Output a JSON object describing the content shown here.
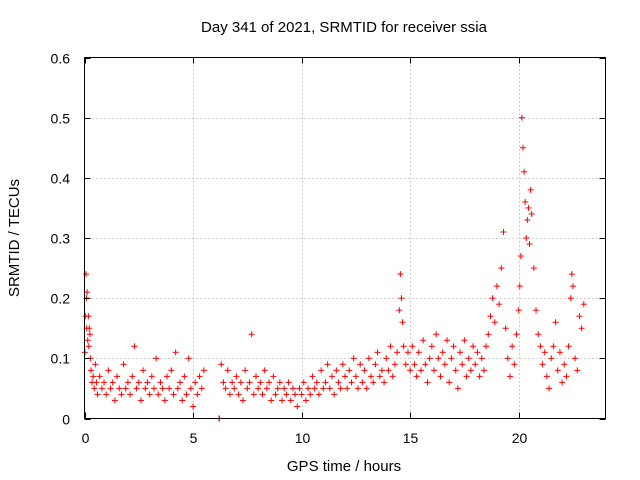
{
  "chart_data": {
    "type": "scatter",
    "title": "Day 341 of 2021, SRMTID for receiver ssia",
    "xlabel": "GPS time / hours",
    "ylabel": "SRMTID / TECUs",
    "xlim": [
      0,
      24
    ],
    "ylim": [
      0,
      0.6
    ],
    "grid": true,
    "marker": "+",
    "color": "#ff0000",
    "xticks": [
      0,
      5,
      10,
      15,
      20
    ],
    "xtick_labels": [
      "0",
      "5",
      "10",
      "15",
      "20"
    ],
    "yticks": [
      0,
      0.1,
      0.2,
      0.3,
      0.4,
      0.5,
      0.6
    ],
    "ytick_labels": [
      "0",
      "0.1",
      "0.2",
      "0.3",
      "0.4",
      "0.5",
      "0.6"
    ],
    "series": [
      {
        "name": "SRMTID",
        "points": [
          [
            0.02,
            0.11
          ],
          [
            0.05,
            0.17
          ],
          [
            0.07,
            0.24
          ],
          [
            0.09,
            0.2
          ],
          [
            0.1,
            0.15
          ],
          [
            0.12,
            0.21
          ],
          [
            0.15,
            0.13
          ],
          [
            0.18,
            0.17
          ],
          [
            0.2,
            0.12
          ],
          [
            0.22,
            0.15
          ],
          [
            0.25,
            0.14
          ],
          [
            0.28,
            0.1
          ],
          [
            0.3,
            0.08
          ],
          [
            0.35,
            0.06
          ],
          [
            0.4,
            0.07
          ],
          [
            0.45,
            0.05
          ],
          [
            0.5,
            0.09
          ],
          [
            0.55,
            0.06
          ],
          [
            0.6,
            0.04
          ],
          [
            0.7,
            0.07
          ],
          [
            0.8,
            0.05
          ],
          [
            0.9,
            0.06
          ],
          [
            1.0,
            0.04
          ],
          [
            1.1,
            0.08
          ],
          [
            1.2,
            0.05
          ],
          [
            1.3,
            0.06
          ],
          [
            1.4,
            0.03
          ],
          [
            1.5,
            0.07
          ],
          [
            1.6,
            0.05
          ],
          [
            1.7,
            0.04
          ],
          [
            1.8,
            0.09
          ],
          [
            1.9,
            0.05
          ],
          [
            2.0,
            0.06
          ],
          [
            2.1,
            0.04
          ],
          [
            2.2,
            0.07
          ],
          [
            2.3,
            0.12
          ],
          [
            2.4,
            0.05
          ],
          [
            2.5,
            0.06
          ],
          [
            2.6,
            0.03
          ],
          [
            2.7,
            0.08
          ],
          [
            2.8,
            0.05
          ],
          [
            2.9,
            0.06
          ],
          [
            3.0,
            0.04
          ],
          [
            3.1,
            0.07
          ],
          [
            3.2,
            0.05
          ],
          [
            3.3,
            0.1
          ],
          [
            3.4,
            0.04
          ],
          [
            3.5,
            0.06
          ],
          [
            3.6,
            0.05
          ],
          [
            3.7,
            0.03
          ],
          [
            3.8,
            0.07
          ],
          [
            3.9,
            0.05
          ],
          [
            4.0,
            0.08
          ],
          [
            4.1,
            0.04
          ],
          [
            4.2,
            0.11
          ],
          [
            4.3,
            0.05
          ],
          [
            4.4,
            0.06
          ],
          [
            4.5,
            0.03
          ],
          [
            4.6,
            0.07
          ],
          [
            4.7,
            0.04
          ],
          [
            4.8,
            0.1
          ],
          [
            4.9,
            0.05
          ],
          [
            5.0,
            0.02
          ],
          [
            5.1,
            0.06
          ],
          [
            5.2,
            0.04
          ],
          [
            5.3,
            0.07
          ],
          [
            5.4,
            0.05
          ],
          [
            5.5,
            0.08
          ],
          [
            6.2,
            0.0
          ],
          [
            6.22,
            0.0
          ],
          [
            6.3,
            0.09
          ],
          [
            6.4,
            0.06
          ],
          [
            6.5,
            0.05
          ],
          [
            6.6,
            0.08
          ],
          [
            6.7,
            0.04
          ],
          [
            6.8,
            0.06
          ],
          [
            6.9,
            0.05
          ],
          [
            7.0,
            0.07
          ],
          [
            7.1,
            0.04
          ],
          [
            7.2,
            0.06
          ],
          [
            7.3,
            0.03
          ],
          [
            7.4,
            0.08
          ],
          [
            7.5,
            0.05
          ],
          [
            7.6,
            0.06
          ],
          [
            7.7,
            0.14
          ],
          [
            7.8,
            0.04
          ],
          [
            7.9,
            0.07
          ],
          [
            8.0,
            0.05
          ],
          [
            8.1,
            0.06
          ],
          [
            8.2,
            0.04
          ],
          [
            8.3,
            0.08
          ],
          [
            8.4,
            0.05
          ],
          [
            8.5,
            0.06
          ],
          [
            8.6,
            0.03
          ],
          [
            8.7,
            0.07
          ],
          [
            8.8,
            0.04
          ],
          [
            8.9,
            0.05
          ],
          [
            9.0,
            0.06
          ],
          [
            9.1,
            0.03
          ],
          [
            9.2,
            0.05
          ],
          [
            9.3,
            0.04
          ],
          [
            9.4,
            0.06
          ],
          [
            9.5,
            0.03
          ],
          [
            9.6,
            0.05
          ],
          [
            9.7,
            0.04
          ],
          [
            9.8,
            0.02
          ],
          [
            9.9,
            0.05
          ],
          [
            10.0,
            0.04
          ],
          [
            10.1,
            0.06
          ],
          [
            10.2,
            0.03
          ],
          [
            10.3,
            0.05
          ],
          [
            10.4,
            0.04
          ],
          [
            10.5,
            0.07
          ],
          [
            10.6,
            0.05
          ],
          [
            10.7,
            0.06
          ],
          [
            10.8,
            0.04
          ],
          [
            10.9,
            0.08
          ],
          [
            11.0,
            0.05
          ],
          [
            11.1,
            0.06
          ],
          [
            11.2,
            0.09
          ],
          [
            11.3,
            0.05
          ],
          [
            11.4,
            0.07
          ],
          [
            11.5,
            0.04
          ],
          [
            11.6,
            0.08
          ],
          [
            11.7,
            0.06
          ],
          [
            11.8,
            0.05
          ],
          [
            11.9,
            0.09
          ],
          [
            12.0,
            0.07
          ],
          [
            12.1,
            0.05
          ],
          [
            12.2,
            0.08
          ],
          [
            12.3,
            0.06
          ],
          [
            12.4,
            0.1
          ],
          [
            12.5,
            0.07
          ],
          [
            12.6,
            0.05
          ],
          [
            12.7,
            0.09
          ],
          [
            12.8,
            0.06
          ],
          [
            12.9,
            0.08
          ],
          [
            13.0,
            0.05
          ],
          [
            13.1,
            0.1
          ],
          [
            13.2,
            0.07
          ],
          [
            13.3,
            0.06
          ],
          [
            13.4,
            0.09
          ],
          [
            13.5,
            0.11
          ],
          [
            13.6,
            0.07
          ],
          [
            13.7,
            0.08
          ],
          [
            13.8,
            0.06
          ],
          [
            13.9,
            0.1
          ],
          [
            14.0,
            0.08
          ],
          [
            14.1,
            0.12
          ],
          [
            14.2,
            0.07
          ],
          [
            14.3,
            0.09
          ],
          [
            14.4,
            0.11
          ],
          [
            14.5,
            0.18
          ],
          [
            14.55,
            0.24
          ],
          [
            14.6,
            0.2
          ],
          [
            14.65,
            0.16
          ],
          [
            14.7,
            0.12
          ],
          [
            14.8,
            0.09
          ],
          [
            14.9,
            0.11
          ],
          [
            15.0,
            0.08
          ],
          [
            15.1,
            0.12
          ],
          [
            15.2,
            0.09
          ],
          [
            15.3,
            0.07
          ],
          [
            15.4,
            0.11
          ],
          [
            15.5,
            0.08
          ],
          [
            15.6,
            0.13
          ],
          [
            15.7,
            0.09
          ],
          [
            15.8,
            0.06
          ],
          [
            15.9,
            0.1
          ],
          [
            16.0,
            0.12
          ],
          [
            16.1,
            0.08
          ],
          [
            16.2,
            0.14
          ],
          [
            16.3,
            0.1
          ],
          [
            16.4,
            0.07
          ],
          [
            16.5,
            0.11
          ],
          [
            16.6,
            0.09
          ],
          [
            16.7,
            0.13
          ],
          [
            16.8,
            0.06
          ],
          [
            16.9,
            0.1
          ],
          [
            17.0,
            0.12
          ],
          [
            17.1,
            0.08
          ],
          [
            17.2,
            0.05
          ],
          [
            17.3,
            0.11
          ],
          [
            17.4,
            0.09
          ],
          [
            17.5,
            0.13
          ],
          [
            17.6,
            0.07
          ],
          [
            17.7,
            0.1
          ],
          [
            17.8,
            0.08
          ],
          [
            17.9,
            0.12
          ],
          [
            18.0,
            0.09
          ],
          [
            18.1,
            0.11
          ],
          [
            18.2,
            0.07
          ],
          [
            18.3,
            0.1
          ],
          [
            18.4,
            0.08
          ],
          [
            18.5,
            0.12
          ],
          [
            18.6,
            0.14
          ],
          [
            18.7,
            0.17
          ],
          [
            18.8,
            0.2
          ],
          [
            18.9,
            0.16
          ],
          [
            19.0,
            0.22
          ],
          [
            19.1,
            0.19
          ],
          [
            19.2,
            0.25
          ],
          [
            19.3,
            0.31
          ],
          [
            19.4,
            0.15
          ],
          [
            19.5,
            0.1
          ],
          [
            19.6,
            0.07
          ],
          [
            19.7,
            0.12
          ],
          [
            19.8,
            0.09
          ],
          [
            19.9,
            0.14
          ],
          [
            20.0,
            0.18
          ],
          [
            20.05,
            0.22
          ],
          [
            20.1,
            0.27
          ],
          [
            20.15,
            0.5
          ],
          [
            20.2,
            0.45
          ],
          [
            20.25,
            0.41
          ],
          [
            20.3,
            0.36
          ],
          [
            20.35,
            0.3
          ],
          [
            20.4,
            0.33
          ],
          [
            20.45,
            0.35
          ],
          [
            20.5,
            0.29
          ],
          [
            20.55,
            0.38
          ],
          [
            20.6,
            0.34
          ],
          [
            20.7,
            0.25
          ],
          [
            20.8,
            0.18
          ],
          [
            20.9,
            0.14
          ],
          [
            21.0,
            0.12
          ],
          [
            21.1,
            0.09
          ],
          [
            21.2,
            0.11
          ],
          [
            21.3,
            0.07
          ],
          [
            21.4,
            0.05
          ],
          [
            21.5,
            0.1
          ],
          [
            21.6,
            0.12
          ],
          [
            21.7,
            0.16
          ],
          [
            21.8,
            0.08
          ],
          [
            21.9,
            0.11
          ],
          [
            22.0,
            0.06
          ],
          [
            22.1,
            0.09
          ],
          [
            22.2,
            0.07
          ],
          [
            22.3,
            0.12
          ],
          [
            22.4,
            0.2
          ],
          [
            22.45,
            0.24
          ],
          [
            22.5,
            0.22
          ],
          [
            22.6,
            0.1
          ],
          [
            22.7,
            0.08
          ],
          [
            22.8,
            0.17
          ],
          [
            22.9,
            0.15
          ],
          [
            23.0,
            0.19
          ]
        ]
      }
    ]
  }
}
